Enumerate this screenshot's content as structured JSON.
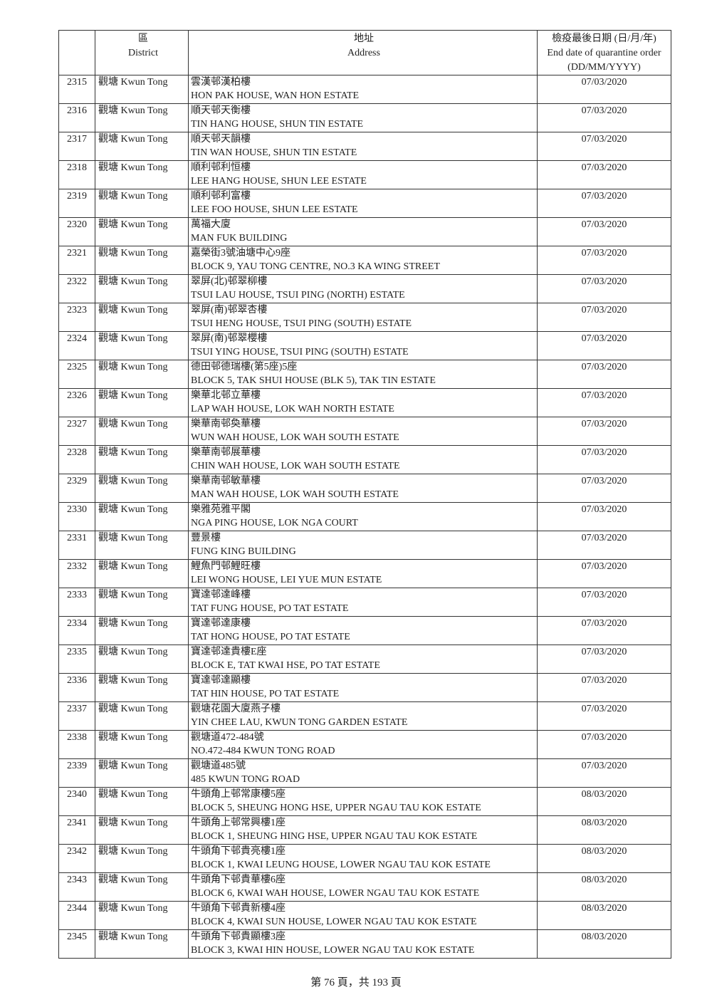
{
  "header": {
    "district_zh": "區",
    "district_en": "District",
    "address_zh": "地址",
    "address_en": "Address",
    "date_zh": "檢疫最後日期 (日/月/年)",
    "date_en": "End date of quarantine order",
    "date_fmt": "(DD/MM/YYYY)"
  },
  "rows": [
    {
      "no": "2315",
      "district": "觀塘 Kwun Tong",
      "zh": "雲漢邨漢柏樓",
      "en": "HON PAK HOUSE, WAN HON ESTATE",
      "date": "07/03/2020"
    },
    {
      "no": "2316",
      "district": "觀塘 Kwun Tong",
      "zh": "順天邨天衡樓",
      "en": "TIN HANG HOUSE, SHUN TIN ESTATE",
      "date": "07/03/2020"
    },
    {
      "no": "2317",
      "district": "觀塘 Kwun Tong",
      "zh": "順天邨天韻樓",
      "en": "TIN WAN HOUSE, SHUN TIN ESTATE",
      "date": "07/03/2020"
    },
    {
      "no": "2318",
      "district": "觀塘 Kwun Tong",
      "zh": "順利邨利恒樓",
      "en": "LEE HANG HOUSE, SHUN LEE ESTATE",
      "date": "07/03/2020"
    },
    {
      "no": "2319",
      "district": "觀塘 Kwun Tong",
      "zh": "順利邨利富樓",
      "en": "LEE FOO HOUSE, SHUN LEE ESTATE",
      "date": "07/03/2020"
    },
    {
      "no": "2320",
      "district": "觀塘 Kwun Tong",
      "zh": "萬福大廈",
      "en": "MAN FUK BUILDING",
      "date": "07/03/2020"
    },
    {
      "no": "2321",
      "district": "觀塘 Kwun Tong",
      "zh": "嘉榮街3號油塘中心9座",
      "en": "BLOCK 9, YAU TONG CENTRE, NO.3 KA WING STREET",
      "date": "07/03/2020"
    },
    {
      "no": "2322",
      "district": "觀塘 Kwun Tong",
      "zh": "翠屏(北)邨翠柳樓",
      "en": "TSUI LAU HOUSE, TSUI PING (NORTH) ESTATE",
      "date": "07/03/2020"
    },
    {
      "no": "2323",
      "district": "觀塘 Kwun Tong",
      "zh": "翠屏(南)邨翠杏樓",
      "en": "TSUI HENG HOUSE, TSUI PING (SOUTH) ESTATE",
      "date": "07/03/2020"
    },
    {
      "no": "2324",
      "district": "觀塘 Kwun Tong",
      "zh": "翠屏(南)邨翠櫻樓",
      "en": "TSUI YING HOUSE, TSUI PING (SOUTH) ESTATE",
      "date": "07/03/2020"
    },
    {
      "no": "2325",
      "district": "觀塘 Kwun Tong",
      "zh": "德田邨德瑞樓(第5座)5座",
      "en": "BLOCK 5, TAK SHUI HOUSE (BLK 5), TAK TIN ESTATE",
      "date": "07/03/2020"
    },
    {
      "no": "2326",
      "district": "觀塘 Kwun Tong",
      "zh": "樂華北邨立華樓",
      "en": "LAP WAH HOUSE, LOK WAH NORTH ESTATE",
      "date": "07/03/2020"
    },
    {
      "no": "2327",
      "district": "觀塘 Kwun Tong",
      "zh": "樂華南邨奐華樓",
      "en": "WUN WAH HOUSE, LOK WAH SOUTH ESTATE",
      "date": "07/03/2020"
    },
    {
      "no": "2328",
      "district": "觀塘 Kwun Tong",
      "zh": "樂華南邨展華樓",
      "en": "CHIN WAH HOUSE, LOK WAH SOUTH ESTATE",
      "date": "07/03/2020"
    },
    {
      "no": "2329",
      "district": "觀塘 Kwun Tong",
      "zh": "樂華南邨敏華樓",
      "en": "MAN WAH HOUSE, LOK WAH SOUTH ESTATE",
      "date": "07/03/2020"
    },
    {
      "no": "2330",
      "district": "觀塘 Kwun Tong",
      "zh": "樂雅苑雅平閣",
      "en": "NGA PING HOUSE, LOK NGA COURT",
      "date": "07/03/2020"
    },
    {
      "no": "2331",
      "district": "觀塘 Kwun Tong",
      "zh": "豐景樓",
      "en": "FUNG KING BUILDING",
      "date": "07/03/2020"
    },
    {
      "no": "2332",
      "district": "觀塘 Kwun Tong",
      "zh": "鯉魚門邨鯉旺樓",
      "en": "LEI WONG HOUSE, LEI YUE MUN ESTATE",
      "date": "07/03/2020"
    },
    {
      "no": "2333",
      "district": "觀塘 Kwun Tong",
      "zh": "寶達邨達峰樓",
      "en": "TAT FUNG HOUSE, PO TAT ESTATE",
      "date": "07/03/2020"
    },
    {
      "no": "2334",
      "district": "觀塘 Kwun Tong",
      "zh": "寶達邨達康樓",
      "en": "TAT HONG HOUSE, PO TAT ESTATE",
      "date": "07/03/2020"
    },
    {
      "no": "2335",
      "district": "觀塘 Kwun Tong",
      "zh": "寶達邨達貴樓E座",
      "en": "BLOCK E, TAT KWAI HSE, PO TAT ESTATE",
      "date": "07/03/2020"
    },
    {
      "no": "2336",
      "district": "觀塘 Kwun Tong",
      "zh": "寶達邨達顯樓",
      "en": "TAT HIN HOUSE, PO TAT ESTATE",
      "date": "07/03/2020"
    },
    {
      "no": "2337",
      "district": "觀塘 Kwun Tong",
      "zh": "觀塘花園大廈燕子樓",
      "en": "YIN CHEE LAU, KWUN TONG GARDEN ESTATE",
      "date": "07/03/2020"
    },
    {
      "no": "2338",
      "district": "觀塘 Kwun Tong",
      "zh": "觀塘道472-484號",
      "en": "NO.472-484 KWUN TONG ROAD",
      "date": "07/03/2020"
    },
    {
      "no": "2339",
      "district": "觀塘 Kwun Tong",
      "zh": "觀塘道485號",
      "en": "485 KWUN TONG ROAD",
      "date": "07/03/2020"
    },
    {
      "no": "2340",
      "district": "觀塘 Kwun Tong",
      "zh": "牛頭角上邨常康樓5座",
      "en": "BLOCK 5, SHEUNG HONG HSE, UPPER NGAU TAU KOK ESTATE",
      "date": "08/03/2020"
    },
    {
      "no": "2341",
      "district": "觀塘 Kwun Tong",
      "zh": "牛頭角上邨常興樓1座",
      "en": "BLOCK 1, SHEUNG HING HSE, UPPER NGAU TAU KOK ESTATE",
      "date": "08/03/2020"
    },
    {
      "no": "2342",
      "district": "觀塘 Kwun Tong",
      "zh": "牛頭角下邨貴亮樓1座",
      "en": "BLOCK 1, KWAI LEUNG HOUSE, LOWER NGAU TAU KOK ESTATE",
      "date": "08/03/2020"
    },
    {
      "no": "2343",
      "district": "觀塘 Kwun Tong",
      "zh": "牛頭角下邨貴華樓6座",
      "en": "BLOCK 6, KWAI WAH HOUSE, LOWER NGAU TAU KOK ESTATE",
      "date": "08/03/2020"
    },
    {
      "no": "2344",
      "district": "觀塘 Kwun Tong",
      "zh": "牛頭角下邨貴新樓4座",
      "en": "BLOCK 4, KWAI SUN HOUSE, LOWER NGAU TAU KOK ESTATE",
      "date": "08/03/2020"
    },
    {
      "no": "2345",
      "district": "觀塘 Kwun Tong",
      "zh": "牛頭角下邨貴顯樓3座",
      "en": "BLOCK 3, KWAI HIN HOUSE, LOWER NGAU TAU KOK ESTATE",
      "date": "08/03/2020"
    }
  ],
  "footer": {
    "page_text": "第 76 頁，共 193 頁"
  }
}
